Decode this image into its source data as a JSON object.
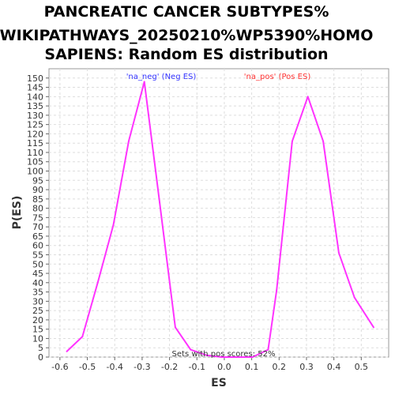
{
  "chart_data": {
    "type": "line",
    "title_lines": [
      "PANCREATIC CANCER SUBTYPES%",
      "WIKIPATHWAYS_20250210%WP5390%HOMO",
      "SAPIENS: Random ES distribution"
    ],
    "xlabel": "ES",
    "ylabel": "P(ES)",
    "xlim": [
      -0.64,
      0.6
    ],
    "ylim": [
      0,
      155
    ],
    "xticks": [
      -0.6,
      -0.5,
      -0.4,
      -0.3,
      -0.2,
      -0.1,
      0.0,
      0.1,
      0.2,
      0.3,
      0.4,
      0.5
    ],
    "xtick_labels": [
      "-0.6",
      "-0.5",
      "-0.4",
      "-0.3",
      "-0.2",
      "-0.1",
      "0.0",
      "0.1",
      "0.2",
      "0.3",
      "0.4",
      "0.5"
    ],
    "yticks": [
      0,
      5,
      10,
      15,
      20,
      25,
      30,
      35,
      40,
      45,
      50,
      55,
      60,
      65,
      70,
      75,
      80,
      85,
      90,
      95,
      100,
      105,
      110,
      115,
      120,
      125,
      130,
      135,
      140,
      145,
      150
    ],
    "ytick_labels": [
      "0",
      "5",
      "10",
      "15",
      "20",
      "25",
      "30",
      "35",
      "40",
      "45",
      "50",
      "55",
      "60",
      "65",
      "70",
      "75",
      "80",
      "85",
      "90",
      "95",
      "100",
      "105",
      "110",
      "115",
      "120",
      "125",
      "130",
      "135",
      "140",
      "145",
      "150"
    ],
    "grid": true,
    "series": [
      {
        "color": "#ff33ff",
        "x": [
          -0.575,
          -0.518,
          -0.462,
          -0.405,
          -0.349,
          -0.292,
          -0.236,
          -0.179,
          -0.123,
          -0.066,
          -0.01,
          0.047,
          0.103,
          0.16,
          0.191,
          0.248,
          0.305,
          0.361,
          0.418,
          0.475,
          0.545
        ],
        "y": [
          3,
          11,
          40,
          71,
          116,
          148,
          83,
          16,
          4,
          1,
          0,
          0,
          0,
          4,
          36,
          116,
          140,
          116,
          56,
          32,
          16
        ]
      }
    ],
    "annotations": [
      {
        "text": "'na_neg' (Neg ES)",
        "color": "#3333ff"
      },
      {
        "text": "'na_pos' (Pos ES)",
        "color": "#ff3333"
      },
      {
        "text": "Sets with pos scores: 52%",
        "color": "#333333"
      }
    ]
  }
}
